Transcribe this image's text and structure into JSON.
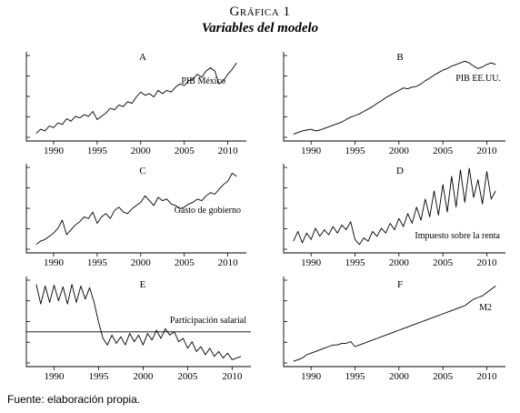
{
  "figure": {
    "title": "Gráfica 1",
    "subtitle": "Variables del modelo",
    "footer": "Fuente: elaboración propia."
  },
  "colors": {
    "line": "#000000",
    "background": "#ffffff"
  },
  "chart_data": [
    {
      "type": "line",
      "panel": "A",
      "series_label": "PIB México",
      "xlim": [
        1987.5,
        2011.5
      ],
      "xticks": [
        1990,
        1995,
        2000,
        2005,
        2010
      ],
      "yticks_count": 5,
      "ylim": [
        0,
        100
      ],
      "x": [
        1988.0,
        1988.5,
        1989.0,
        1989.5,
        1990.0,
        1990.5,
        1991.0,
        1991.5,
        1992.0,
        1992.5,
        1993.0,
        1993.5,
        1994.0,
        1994.5,
        1995.0,
        1995.5,
        1996.0,
        1996.5,
        1997.0,
        1997.5,
        1998.0,
        1998.5,
        1999.0,
        1999.5,
        2000.0,
        2000.5,
        2001.0,
        2001.5,
        2002.0,
        2002.5,
        2003.0,
        2003.5,
        2004.0,
        2004.5,
        2005.0,
        2005.5,
        2006.0,
        2006.5,
        2007.0,
        2007.5,
        2008.0,
        2008.5,
        2009.0,
        2009.5,
        2010.0,
        2010.5,
        2011.0
      ],
      "y": [
        5,
        10,
        8,
        14,
        12,
        18,
        16,
        23,
        20,
        26,
        24,
        28,
        26,
        32,
        22,
        26,
        30,
        36,
        34,
        40,
        38,
        44,
        42,
        50,
        56,
        52,
        54,
        50,
        58,
        54,
        58,
        56,
        62,
        66,
        64,
        70,
        72,
        78,
        74,
        82,
        86,
        82,
        66,
        70,
        78,
        84,
        92
      ]
    },
    {
      "type": "line",
      "panel": "B",
      "series_label": "PIB EE.UU.",
      "xlim": [
        1987.5,
        2011.5
      ],
      "xticks": [
        1990,
        1995,
        2000,
        2005,
        2010
      ],
      "yticks_count": 5,
      "ylim": [
        0,
        100
      ],
      "x": [
        1988.0,
        1988.5,
        1989.0,
        1989.5,
        1990.0,
        1990.5,
        1991.0,
        1991.5,
        1992.0,
        1992.5,
        1993.0,
        1993.5,
        1994.0,
        1994.5,
        1995.0,
        1995.5,
        1996.0,
        1996.5,
        1997.0,
        1997.5,
        1998.0,
        1998.5,
        1999.0,
        1999.5,
        2000.0,
        2000.5,
        2001.0,
        2001.5,
        2002.0,
        2002.5,
        2003.0,
        2003.5,
        2004.0,
        2004.5,
        2005.0,
        2005.5,
        2006.0,
        2006.5,
        2007.0,
        2007.5,
        2008.0,
        2008.5,
        2009.0,
        2009.5,
        2010.0,
        2010.5,
        2011.0
      ],
      "y": [
        4,
        6,
        8,
        9,
        10,
        8,
        9,
        11,
        13,
        15,
        17,
        19,
        22,
        25,
        27,
        29,
        32,
        35,
        38,
        42,
        45,
        49,
        52,
        55,
        58,
        61,
        60,
        62,
        63,
        66,
        70,
        73,
        77,
        80,
        83,
        85,
        88,
        90,
        92,
        94,
        92,
        88,
        85,
        87,
        90,
        92,
        90
      ]
    },
    {
      "type": "line",
      "panel": "C",
      "series_label": "Gasto de gobierno",
      "xlim": [
        1987.5,
        2011.5
      ],
      "xticks": [
        1990,
        1995,
        2000,
        2005,
        2010
      ],
      "yticks_count": 5,
      "ylim": [
        0,
        100
      ],
      "x": [
        1988.0,
        1988.5,
        1989.0,
        1989.5,
        1990.0,
        1990.5,
        1991.0,
        1991.5,
        1992.0,
        1992.5,
        1993.0,
        1993.5,
        1994.0,
        1994.5,
        1995.0,
        1995.5,
        1996.0,
        1996.5,
        1997.0,
        1997.5,
        1998.0,
        1998.5,
        1999.0,
        1999.5,
        2000.0,
        2000.5,
        2001.0,
        2001.5,
        2002.0,
        2002.5,
        2003.0,
        2003.5,
        2004.0,
        2004.5,
        2005.0,
        2005.5,
        2006.0,
        2006.5,
        2007.0,
        2007.5,
        2008.0,
        2008.5,
        2009.0,
        2009.5,
        2010.0,
        2010.5,
        2011.0
      ],
      "y": [
        6,
        10,
        12,
        16,
        20,
        26,
        36,
        18,
        24,
        30,
        34,
        40,
        38,
        46,
        32,
        40,
        44,
        38,
        48,
        52,
        46,
        44,
        50,
        54,
        58,
        66,
        60,
        54,
        64,
        60,
        62,
        56,
        54,
        50,
        52,
        56,
        58,
        62,
        60,
        66,
        70,
        68,
        74,
        80,
        84,
        94,
        90
      ]
    },
    {
      "type": "line",
      "panel": "D",
      "series_label": "Impuesto sobre la renta",
      "xlim": [
        1987.5,
        2011.5
      ],
      "xticks": [
        1990,
        1995,
        2000,
        2005,
        2010
      ],
      "yticks_count": 5,
      "ylim": [
        0,
        100
      ],
      "x": [
        1988.0,
        1988.5,
        1989.0,
        1989.5,
        1990.0,
        1990.5,
        1991.0,
        1991.5,
        1992.0,
        1992.5,
        1993.0,
        1993.5,
        1994.0,
        1994.5,
        1995.0,
        1995.5,
        1996.0,
        1996.5,
        1997.0,
        1997.5,
        1998.0,
        1998.5,
        1999.0,
        1999.5,
        2000.0,
        2000.5,
        2001.0,
        2001.5,
        2002.0,
        2002.5,
        2003.0,
        2003.5,
        2004.0,
        2004.5,
        2005.0,
        2005.5,
        2006.0,
        2006.5,
        2007.0,
        2007.5,
        2008.0,
        2008.5,
        2009.0,
        2009.5,
        2010.0,
        2010.5,
        2011.0
      ],
      "y": [
        10,
        22,
        8,
        20,
        12,
        26,
        16,
        24,
        18,
        28,
        20,
        30,
        24,
        34,
        12,
        6,
        14,
        10,
        22,
        16,
        26,
        20,
        32,
        24,
        38,
        28,
        44,
        32,
        52,
        36,
        62,
        40,
        72,
        42,
        80,
        46,
        90,
        52,
        98,
        58,
        100,
        64,
        86,
        56,
        96,
        62,
        72
      ]
    },
    {
      "type": "line",
      "panel": "E",
      "series_label": "Participación salarial",
      "xlim": [
        1987.5,
        2011.5
      ],
      "xticks": [
        1990,
        1995,
        2000,
        2005,
        2010
      ],
      "yticks_count": 5,
      "ylim": [
        0,
        100
      ],
      "reference_line": 38,
      "x": [
        1988.0,
        1988.5,
        1989.0,
        1989.5,
        1990.0,
        1990.5,
        1991.0,
        1991.5,
        1992.0,
        1992.5,
        1993.0,
        1993.5,
        1994.0,
        1994.5,
        1995.0,
        1995.5,
        1996.0,
        1996.5,
        1997.0,
        1997.5,
        1998.0,
        1998.5,
        1999.0,
        1999.5,
        2000.0,
        2000.5,
        2001.0,
        2001.5,
        2002.0,
        2002.5,
        2003.0,
        2003.5,
        2004.0,
        2004.5,
        2005.0,
        2005.5,
        2006.0,
        2006.5,
        2007.0,
        2007.5,
        2008.0,
        2008.5,
        2009.0,
        2009.5,
        2010.0,
        2010.5,
        2011.0
      ],
      "y": [
        96,
        72,
        94,
        74,
        95,
        76,
        93,
        72,
        96,
        74,
        94,
        78,
        92,
        74,
        50,
        30,
        22,
        34,
        24,
        32,
        22,
        36,
        26,
        34,
        22,
        36,
        28,
        40,
        30,
        42,
        34,
        38,
        26,
        30,
        18,
        26,
        14,
        20,
        10,
        18,
        8,
        14,
        6,
        12,
        4,
        6,
        8
      ]
    },
    {
      "type": "line",
      "panel": "F",
      "series_label": "M2",
      "xlim": [
        1987.5,
        2011.5
      ],
      "xticks": [
        1990,
        1995,
        2000,
        2005,
        2010
      ],
      "yticks_count": 5,
      "ylim": [
        0,
        100
      ],
      "x": [
        1988.0,
        1988.5,
        1989.0,
        1989.5,
        1990.0,
        1990.5,
        1991.0,
        1991.5,
        1992.0,
        1992.5,
        1993.0,
        1993.5,
        1994.0,
        1994.5,
        1995.0,
        1995.5,
        1996.0,
        1996.5,
        1997.0,
        1997.5,
        1998.0,
        1998.5,
        1999.0,
        1999.5,
        2000.0,
        2000.5,
        2001.0,
        2001.5,
        2002.0,
        2002.5,
        2003.0,
        2003.5,
        2004.0,
        2004.5,
        2005.0,
        2005.5,
        2006.0,
        2006.5,
        2007.0,
        2007.5,
        2008.0,
        2008.5,
        2009.0,
        2009.5,
        2010.0,
        2010.5,
        2011.0
      ],
      "y": [
        2,
        4,
        6,
        10,
        12,
        14,
        16,
        18,
        20,
        22,
        22,
        24,
        24,
        26,
        20,
        22,
        24,
        26,
        28,
        30,
        32,
        34,
        36,
        38,
        40,
        42,
        44,
        46,
        48,
        50,
        52,
        54,
        56,
        58,
        60,
        62,
        64,
        66,
        68,
        70,
        74,
        78,
        80,
        82,
        86,
        90,
        94
      ]
    }
  ]
}
